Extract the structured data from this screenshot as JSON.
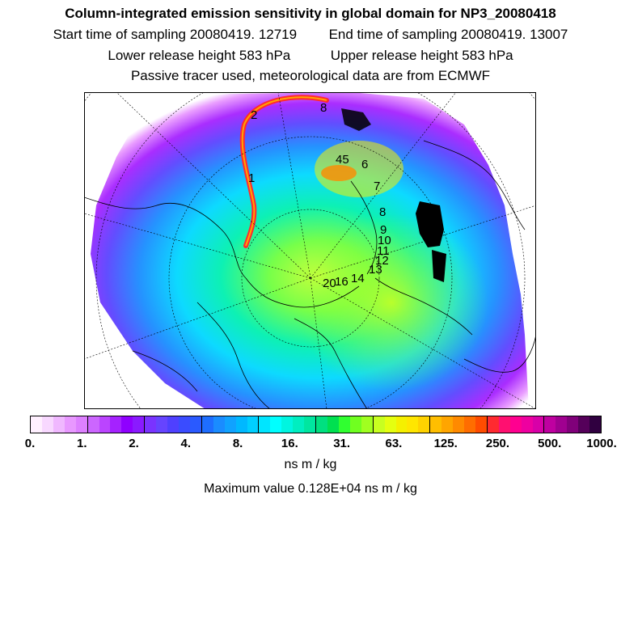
{
  "header": {
    "title": "Column-integrated emission sensitivity in global domain for NP3_20080418",
    "start_time": "Start time of sampling 20080419. 12719",
    "end_time": "End time of sampling 20080419. 13007",
    "lower_release": "Lower release height  583 hPa",
    "upper_release": "Upper release height  583 hPa",
    "note": "Passive tracer used, meteorological data are from ECMWF"
  },
  "map": {
    "track_labels": [
      "2",
      "1",
      "8",
      "45",
      "6",
      "7",
      "8",
      "9",
      "10",
      "11",
      "12",
      "13",
      "20",
      "16",
      "14"
    ]
  },
  "colorbar": {
    "ticks": [
      "0.",
      "1.",
      "2.",
      "4.",
      "8.",
      "16.",
      "31.",
      "63.",
      "125.",
      "250.",
      "500.",
      "1000."
    ],
    "colors": [
      "#fff0ff",
      "#f8d8ff",
      "#f0b8ff",
      "#e898ff",
      "#dd80ff",
      "#cc66ff",
      "#bb44ff",
      "#a522ff",
      "#8f00ff",
      "#8a1aff",
      "#7a33ff",
      "#6644ff",
      "#4f40ff",
      "#3a4cff",
      "#2a5aff",
      "#1e6eff",
      "#1a8cff",
      "#10a2ff",
      "#00b8ff",
      "#00cfff",
      "#00e5ff",
      "#00ffff",
      "#00f5e0",
      "#00eec0",
      "#00e6a0",
      "#00e080",
      "#00e050",
      "#30ff30",
      "#70ff20",
      "#a0ff20",
      "#c8ff20",
      "#e5ff10",
      "#f5f000",
      "#ffe600",
      "#ffd200",
      "#ffbe00",
      "#ffa500",
      "#ff8a00",
      "#ff6d00",
      "#ff4c00",
      "#ff2a30",
      "#ff1070",
      "#ff0090",
      "#ee00a0",
      "#d800a8",
      "#bf00a0",
      "#a00090",
      "#80007a",
      "#55005a",
      "#300040"
    ],
    "units": "ns m / kg",
    "max_value": "Maximum value  0.128E+04 ns m / kg"
  }
}
